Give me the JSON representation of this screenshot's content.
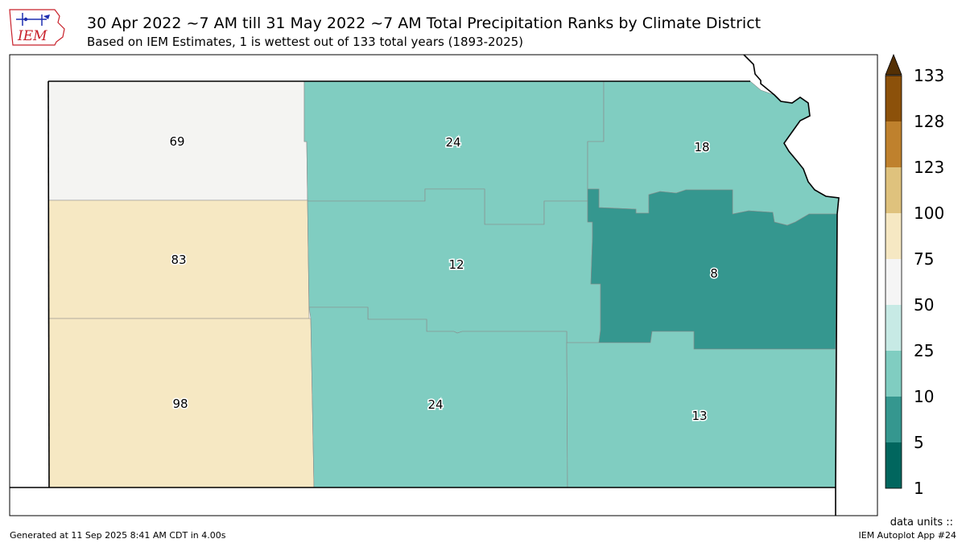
{
  "header": {
    "title": "30 Apr 2022 ~7 AM till 31 May 2022 ~7 AM Total Precipitation Ranks by Climate District",
    "subtitle": "Based on IEM Estimates, 1 is wettest out of 133 total years (1893-2025)",
    "logo_text": "IEM"
  },
  "map": {
    "state": "Kansas",
    "districts": [
      {
        "id": "northwest",
        "rank": "69",
        "color": "#f4f4f2"
      },
      {
        "id": "north-central",
        "rank": "24",
        "color": "#80cdc1"
      },
      {
        "id": "northeast",
        "rank": "18",
        "color": "#80cdc1"
      },
      {
        "id": "west-central",
        "rank": "83",
        "color": "#f6e8c3"
      },
      {
        "id": "central",
        "rank": "12",
        "color": "#80cdc1"
      },
      {
        "id": "east-central",
        "rank": "8",
        "color": "#35978f"
      },
      {
        "id": "southwest",
        "rank": "98",
        "color": "#f6e8c3"
      },
      {
        "id": "south-central",
        "rank": "24",
        "color": "#80cdc1"
      },
      {
        "id": "southeast",
        "rank": "13",
        "color": "#80cdc1"
      }
    ]
  },
  "colorbar": {
    "levels": [
      "1",
      "5",
      "10",
      "25",
      "50",
      "75",
      "100",
      "123",
      "128",
      "133"
    ],
    "colors": [
      "#01665e",
      "#35978f",
      "#80cdc1",
      "#c7eae5",
      "#f5f5f5",
      "#f6e8c3",
      "#dfc27d",
      "#bf812d",
      "#8c510a"
    ],
    "extend_color": "#543005",
    "units_label": "data units ::"
  },
  "footer": {
    "generated": "Generated at 11 Sep 2025 8:41 AM CDT in 4.00s",
    "app": "IEM Autoplot App #24"
  }
}
